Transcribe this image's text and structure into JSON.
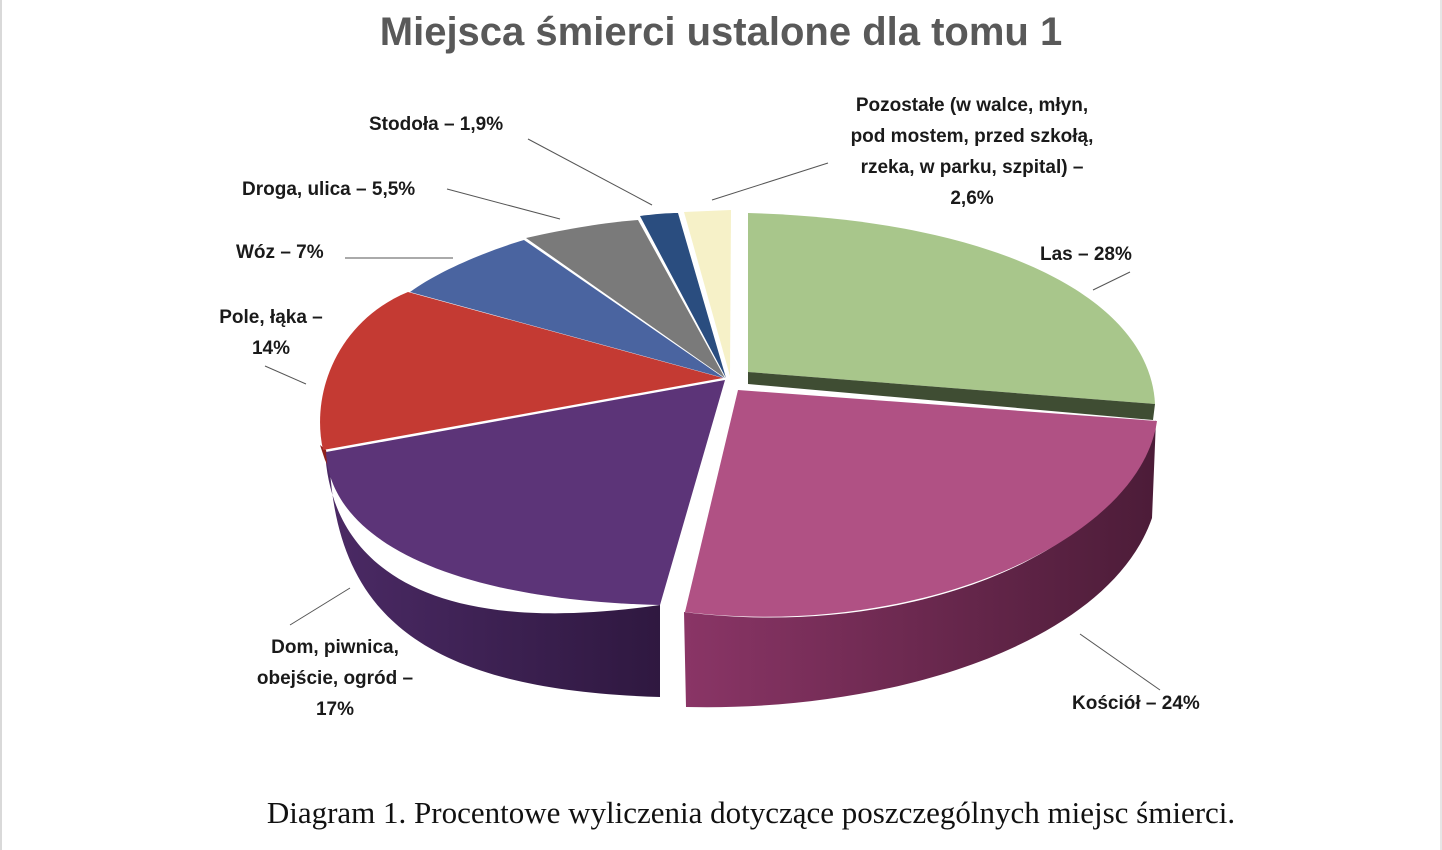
{
  "chart_data": {
    "type": "pie",
    "title": "Miejsca śmierci ustalone dla tomu 1",
    "slices": [
      {
        "label": "Las – 28%",
        "value": 28,
        "color": "#a8c68b"
      },
      {
        "label": "Kościół – 24%",
        "value": 24,
        "color": "#b05184"
      },
      {
        "label": "Dom, piwnica, obejście, ogród – 17%",
        "value": 17,
        "color": "#5c3478"
      },
      {
        "label": "Pole, łąka – 14%",
        "value": 14,
        "color": "#c43a33"
      },
      {
        "label": "Wóz – 7%",
        "value": 7,
        "color": "#4a64a0"
      },
      {
        "label": "Droga, ulica – 5,5%",
        "value": 5.5,
        "color": "#7a7a7a"
      },
      {
        "label": "Stodoła – 1,9%",
        "value": 1.9,
        "color": "#2a4d7f"
      },
      {
        "label": "Pozostałe (w walce, młyn, pod mostem, przed szkołą, rzeka, w parku, szpital) – 2,6%",
        "value": 2.6,
        "color": "#f6f1c8"
      }
    ],
    "legend": "none",
    "label_style": "callouts"
  },
  "labels": {
    "las": "Las – 28%",
    "kosciol": "Kościół – 24%",
    "dom": [
      "Dom, piwnica,",
      "obejście, ogród –",
      "17%"
    ],
    "pole": [
      "Pole, łąka  –",
      "14%"
    ],
    "woz": "Wóz – 7%",
    "droga": "Droga, ulica – 5,5%",
    "stodola": "Stodoła – 1,9%",
    "pozostale": [
      "Pozostałe (w walce, młyn,",
      "pod mostem, przed szkołą,",
      "rzeka, w parku, szpital) –",
      "2,6%"
    ]
  },
  "caption": "Diagram 1. Procentowe wyliczenia dotyczące poszczególnych miejsc śmierci."
}
